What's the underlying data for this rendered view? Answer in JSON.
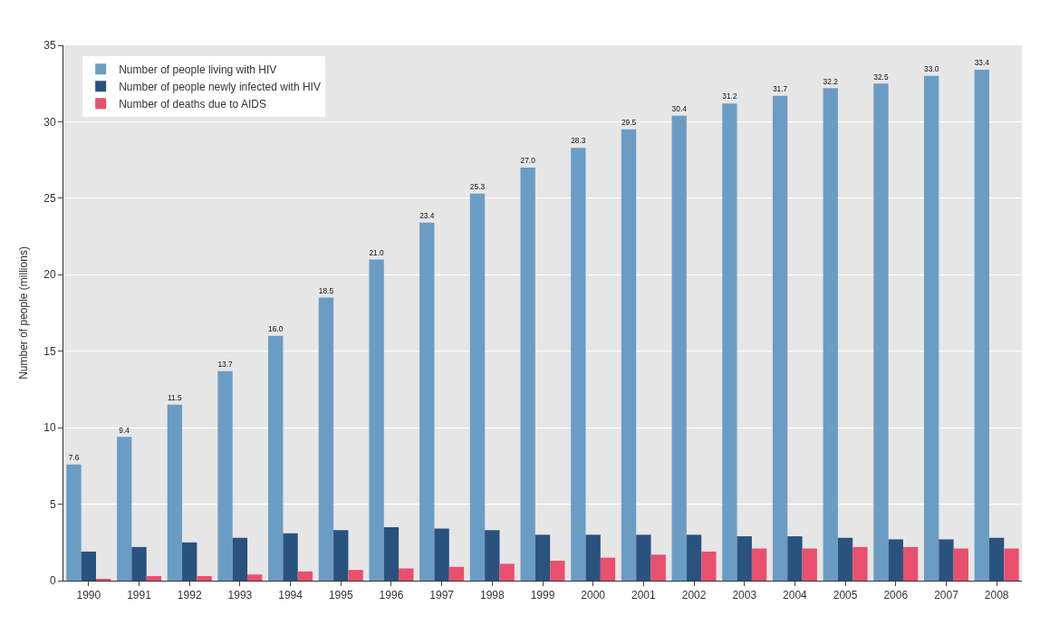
{
  "chart_data": {
    "type": "bar",
    "ylabel": "Number of people (millions)",
    "categories": [
      "1990",
      "1991",
      "1992",
      "1993",
      "1994",
      "1995",
      "1996",
      "1997",
      "1998",
      "1999",
      "2000",
      "2001",
      "2002",
      "2003",
      "2004",
      "2005",
      "2006",
      "2007",
      "2008"
    ],
    "series": [
      {
        "name": "Number of people living with HIV",
        "color": "#6b9cc4",
        "values": [
          7.6,
          9.4,
          11.5,
          13.7,
          16.0,
          18.5,
          21.0,
          23.4,
          25.3,
          27.0,
          28.3,
          29.5,
          30.4,
          31.2,
          31.7,
          32.2,
          32.5,
          33.0,
          33.4
        ],
        "value_labels": [
          "7.6",
          "9.4",
          "11.5",
          "13.7",
          "16.0",
          "18.5",
          "21.0",
          "23.4",
          "25.3",
          "27.0",
          "28.3",
          "29.5",
          "30.4",
          "31.2",
          "31.7",
          "32.2",
          "32.5",
          "33.0",
          "33.4"
        ]
      },
      {
        "name": "Number of people newly infected with HIV",
        "color": "#2a527f",
        "values": [
          1.9,
          2.2,
          2.5,
          2.8,
          3.1,
          3.3,
          3.5,
          3.4,
          3.3,
          3.0,
          3.0,
          3.0,
          3.0,
          2.9,
          2.9,
          2.8,
          2.7,
          2.7,
          2.8
        ]
      },
      {
        "name": "Number of deaths due to AIDS",
        "color": "#e8506e",
        "values": [
          0.1,
          0.3,
          0.3,
          0.4,
          0.6,
          0.7,
          0.8,
          0.9,
          1.1,
          1.3,
          1.5,
          1.7,
          1.9,
          2.1,
          2.1,
          2.2,
          2.2,
          2.1,
          2.1
        ]
      }
    ],
    "ylim": [
      0,
      35
    ],
    "yticks": [
      0,
      5,
      10,
      15,
      20,
      25,
      30,
      35
    ],
    "grid": "y",
    "legend": "top left"
  }
}
